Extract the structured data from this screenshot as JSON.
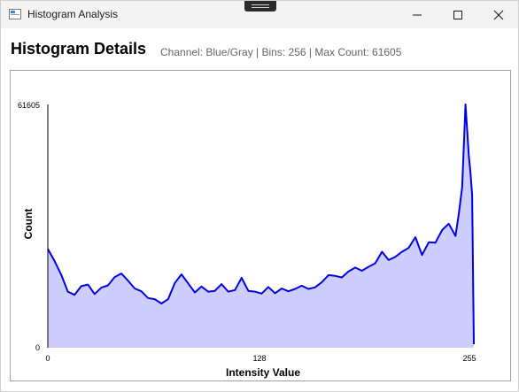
{
  "window": {
    "title": "Histogram Analysis",
    "minimize_icon": "minimize-icon",
    "maximize_icon": "maximize-icon",
    "close_icon": "close-icon"
  },
  "header": {
    "title": "Histogram Details",
    "subtitle": "Channel: Blue/Gray | Bins: 256 | Max Count: 61605"
  },
  "chart_data": {
    "type": "area",
    "title": "",
    "xlabel": "Intensity Value",
    "ylabel": "Count",
    "x_ticks": [
      "0",
      "128",
      "255"
    ],
    "y_ticks": [
      "0",
      "61605"
    ],
    "xlim": [
      0,
      255
    ],
    "ylim": [
      0,
      61605
    ],
    "grid": false,
    "line_color": "#0000e0",
    "fill_color": "#cdcdff",
    "x": [
      0,
      4,
      8,
      12,
      16,
      20,
      24,
      28,
      32,
      36,
      40,
      44,
      48,
      52,
      56,
      60,
      64,
      68,
      72,
      76,
      80,
      84,
      88,
      92,
      96,
      100,
      104,
      108,
      112,
      116,
      120,
      124,
      128,
      132,
      136,
      140,
      144,
      148,
      152,
      156,
      160,
      164,
      168,
      172,
      176,
      180,
      184,
      188,
      192,
      196,
      200,
      204,
      208,
      212,
      216,
      220,
      224,
      228,
      232,
      236,
      240,
      244,
      246,
      248,
      250,
      252,
      253,
      254,
      255
    ],
    "values": [
      25000,
      22000,
      18500,
      14200,
      13400,
      15600,
      16000,
      13600,
      15200,
      15800,
      17900,
      18800,
      17000,
      15000,
      14300,
      12600,
      12300,
      11200,
      12300,
      16400,
      18600,
      16300,
      14000,
      15500,
      14200,
      14400,
      16100,
      14200,
      14600,
      17700,
      14400,
      14200,
      13700,
      15400,
      13800,
      15000,
      14300,
      14900,
      15700,
      14900,
      15300,
      16600,
      18400,
      18200,
      17800,
      19300,
      20300,
      19500,
      20500,
      21400,
      24300,
      22200,
      23000,
      24300,
      25300,
      28000,
      23500,
      26700,
      26600,
      29800,
      31400,
      28300,
      33900,
      40600,
      61605,
      48700,
      44400,
      38600,
      900
    ]
  }
}
